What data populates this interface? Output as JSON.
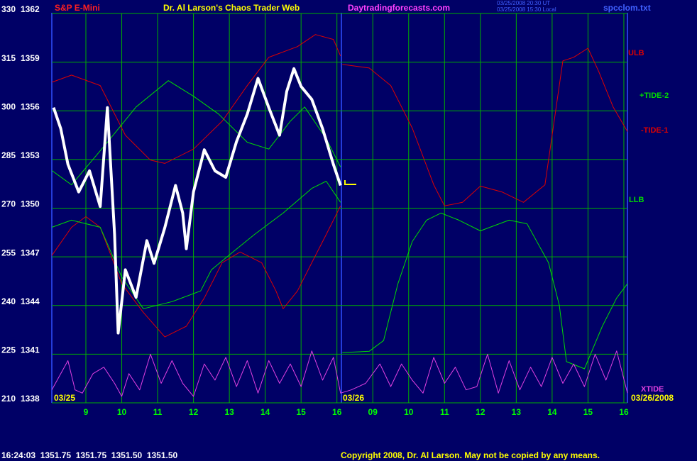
{
  "chart_data": {
    "type": "line",
    "title": "S&P E-Mini",
    "subtitle": "Dr. Al Larson's Chaos Trader Web",
    "website": "Daytradingforecasts.com",
    "timestamps": [
      "03/25/2008 20:30 UT",
      "03/25/2008 15:30 Local"
    ],
    "filename": "spcclom.txt",
    "status_line": "16:24:03  1351.75  1351.75  1351.50  1351.50",
    "copyright": "Copyright 2008, Dr. Al Larson. May not be copied by any means.",
    "date_labels": [
      "03/25",
      "03/26",
      "03/26/2008"
    ],
    "xlim": [
      8.05,
      24.1
    ],
    "xticks": [
      9,
      10,
      11,
      12,
      13,
      14,
      15,
      16,
      {
        "value": 17,
        "label": "09"
      },
      {
        "value": 18,
        "label": "10"
      },
      {
        "value": 19,
        "label": "11"
      },
      {
        "value": 20,
        "label": "12"
      },
      {
        "value": 21,
        "label": "13"
      },
      {
        "value": 22,
        "label": "14"
      },
      {
        "value": 23,
        "label": "15"
      },
      {
        "value": 24,
        "label": "16"
      }
    ],
    "ylim": [
      210,
      330
    ],
    "yticks": [
      210,
      225,
      240,
      255,
      270,
      285,
      300,
      315,
      330
    ],
    "y2lim": [
      1338,
      1362
    ],
    "y2ticks": [
      1338,
      1341,
      1344,
      1347,
      1350,
      1353,
      1356,
      1359,
      1362
    ],
    "grid": true,
    "price": {
      "color": "#ffffff",
      "axis": "y2",
      "x": [
        8.1,
        8.3,
        8.5,
        8.8,
        9.1,
        9.4,
        9.6,
        9.8,
        9.9,
        10.1,
        10.4,
        10.7,
        10.9,
        11.2,
        11.5,
        11.7,
        11.8,
        12.0,
        12.3,
        12.6,
        12.9,
        13.2,
        13.5,
        13.8,
        14.1,
        14.4,
        14.6,
        14.8,
        15.0,
        15.3,
        15.6,
        15.9,
        16.1
      ],
      "values": [
        1356.2,
        1354.9,
        1352.7,
        1351.0,
        1352.3,
        1350.1,
        1356.2,
        1348.4,
        1342.3,
        1346.2,
        1344.5,
        1348.0,
        1346.6,
        1348.8,
        1351.4,
        1349.7,
        1347.5,
        1351.0,
        1353.6,
        1352.3,
        1351.9,
        1354.1,
        1355.8,
        1358.0,
        1356.2,
        1354.5,
        1357.2,
        1358.6,
        1357.5,
        1356.7,
        1354.9,
        1352.7,
        1351.4
      ]
    },
    "series": [
      {
        "name": "ULB",
        "color": "#dd0000",
        "x": [
          8.05,
          8.6,
          9.4,
          10.1,
          10.8,
          11.2,
          12.0,
          12.8,
          13.5,
          14.1,
          14.9,
          15.4,
          15.9,
          16.1,
          null,
          16.15,
          16.9,
          17.5,
          18.1,
          18.7,
          19.0,
          19.5,
          20.0,
          20.6,
          21.2,
          21.8,
          22.3,
          22.6,
          23.0,
          23.3,
          23.7,
          24.1
        ],
        "values": [
          308.8,
          311,
          307.8,
          292.5,
          284.8,
          283.8,
          288.2,
          296.8,
          307.8,
          316.5,
          319.8,
          323.5,
          322,
          316.9,
          null,
          314.3,
          313.2,
          307.8,
          294.7,
          277.2,
          270.7,
          271.8,
          276.8,
          275,
          271.8,
          277.2,
          315.4,
          316.5,
          319.3,
          312.1,
          301.2,
          293.6
        ]
      },
      {
        "name": "+TIDE-2",
        "color": "#00dd00",
        "x": [
          8.05,
          8.6,
          9.6,
          10.4,
          11.3,
          12.0,
          12.7,
          13.5,
          14.1,
          14.7,
          15.1,
          15.7,
          16.1
        ],
        "values": [
          281.6,
          277.2,
          290.3,
          301.2,
          309.3,
          304.5,
          299,
          290.3,
          288.2,
          296.8,
          301.2,
          291.4,
          282.7
        ]
      },
      {
        "name": "-TIDE-1",
        "color": "#dd0000",
        "x": [
          8.05,
          8.6,
          9.0,
          9.4,
          10.0,
          10.6,
          11.2,
          11.8,
          12.3,
          12.8,
          13.3,
          13.9,
          14.3,
          14.5,
          14.9,
          15.3,
          15.7,
          16.1
        ],
        "values": [
          255.4,
          264.1,
          267.4,
          264.1,
          246.7,
          237.9,
          230.3,
          233.6,
          242.3,
          253.2,
          256.5,
          253.2,
          244.5,
          239,
          244.5,
          253.2,
          261.9,
          270.7
        ]
      },
      {
        "name": "LLB",
        "color": "#00dd00",
        "x": [
          8.05,
          8.6,
          9.4,
          10.0,
          10.6,
          11.4,
          12.2,
          12.5,
          13.1,
          13.7,
          14.5,
          15.3,
          15.7,
          16.1,
          null,
          16.15,
          16.9,
          17.3,
          17.7,
          18.1,
          18.5,
          18.9,
          19.4,
          20.0,
          20.8,
          21.3,
          21.9,
          22.2,
          22.4,
          22.9,
          23.4,
          23.8,
          24.1
        ],
        "values": [
          264.1,
          266.3,
          264.1,
          248.8,
          239,
          241.2,
          244.5,
          251,
          256.5,
          261.9,
          268.5,
          276.1,
          278.3,
          271.8,
          null,
          225.5,
          225.9,
          229.2,
          246.7,
          259.7,
          266.3,
          268.5,
          266.3,
          263,
          266.3,
          265.2,
          253.2,
          240.1,
          222.7,
          220.5,
          233.6,
          242.3,
          246.7
        ]
      },
      {
        "name": "XTIDE",
        "color": "#e040e0",
        "x": [
          8.05,
          8.5,
          8.7,
          8.9,
          9.2,
          9.5,
          9.8,
          10.0,
          10.2,
          10.5,
          10.8,
          11.1,
          11.4,
          11.7,
          12.0,
          12.3,
          12.6,
          12.9,
          13.2,
          13.5,
          13.8,
          14.1,
          14.4,
          14.7,
          15.0,
          15.3,
          15.6,
          15.9,
          16.1,
          16.4,
          16.8,
          17.2,
          17.5,
          17.8,
          18.1,
          18.4,
          18.7,
          19.0,
          19.3,
          19.6,
          19.9,
          20.2,
          20.5,
          20.8,
          21.1,
          21.4,
          21.7,
          22.0,
          22.3,
          22.6,
          22.9,
          23.2,
          23.5,
          23.8,
          24.1
        ],
        "values": [
          214,
          223,
          214,
          213,
          219,
          221,
          216,
          212,
          219,
          214,
          225,
          216,
          223,
          216,
          212,
          222,
          217,
          224,
          215,
          223,
          213,
          223,
          216,
          222,
          215,
          226,
          217,
          224,
          213,
          214,
          216,
          222,
          215,
          222,
          217,
          213,
          224,
          216,
          221,
          214,
          215,
          225,
          213,
          223,
          214,
          221,
          215,
          224,
          216,
          222,
          215,
          225,
          217,
          226,
          213
        ]
      }
    ]
  }
}
